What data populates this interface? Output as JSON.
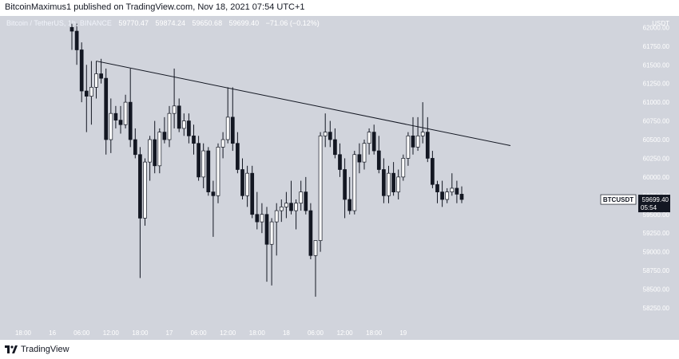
{
  "header": {
    "published_text": "BitcoinMaximus1 published on TradingView.com, Nov 18, 2021 07:54 UTC+1"
  },
  "legend": {
    "symbol_text": "Bitcoin / TetherUS, 1h, BINANCE",
    "open": "59770.47",
    "high": "59874.24",
    "low": "59650.68",
    "close": "59699.40",
    "change": "−71.06 (−0.12%)"
  },
  "price_axis": {
    "unit": "USDT",
    "ticks": [
      "62000.00",
      "61750.00",
      "61500.00",
      "61250.00",
      "61000.00",
      "60750.00",
      "60500.00",
      "60250.00",
      "60000.00",
      "59750.00",
      "59500.00",
      "59250.00",
      "59000.00",
      "58750.00",
      "58500.00",
      "58250.00"
    ]
  },
  "time_axis": {
    "ticks": [
      "18:00",
      "16",
      "06:00",
      "12:00",
      "18:00",
      "17",
      "06:00",
      "12:00",
      "18:00",
      "18",
      "06:00",
      "12:00",
      "18:00",
      "19"
    ]
  },
  "price_tag": {
    "symbol": "BTCUSDT",
    "price": "59699.40",
    "countdown": "05:54"
  },
  "footer": {
    "brand": "TradingView"
  },
  "colors": {
    "background": "#d1d4dc",
    "up_candle": "#ffffff",
    "down_candle": "#131722",
    "trendline": "#131722"
  },
  "chart_data": {
    "type": "candlestick",
    "title": "Bitcoin / TetherUS, 1h, BINANCE",
    "ylabel": "USDT",
    "ylim": [
      58100,
      62100
    ],
    "grid": false,
    "candles": [
      {
        "t": "15 20:00",
        "o": 62000,
        "h": 62050,
        "l": 61700,
        "c": 61950
      },
      {
        "t": "15 21:00",
        "o": 61950,
        "h": 62050,
        "l": 61500,
        "c": 61700
      },
      {
        "t": "15 22:00",
        "o": 61700,
        "h": 61800,
        "l": 61000,
        "c": 61150
      },
      {
        "t": "15 23:00",
        "o": 61150,
        "h": 61500,
        "l": 60600,
        "c": 61080
      },
      {
        "t": "16 00:00",
        "o": 61080,
        "h": 61550,
        "l": 60700,
        "c": 61200
      },
      {
        "t": "16 01:00",
        "o": 61200,
        "h": 61550,
        "l": 61050,
        "c": 61380
      },
      {
        "t": "16 02:00",
        "o": 61380,
        "h": 61580,
        "l": 61250,
        "c": 61320
      },
      {
        "t": "16 03:00",
        "o": 61320,
        "h": 61450,
        "l": 60300,
        "c": 60500
      },
      {
        "t": "16 04:00",
        "o": 60500,
        "h": 61050,
        "l": 60320,
        "c": 60850
      },
      {
        "t": "16 05:00",
        "o": 60850,
        "h": 60950,
        "l": 60650,
        "c": 60760
      },
      {
        "t": "16 06:00",
        "o": 60760,
        "h": 60950,
        "l": 60580,
        "c": 60700
      },
      {
        "t": "16 07:00",
        "o": 60700,
        "h": 61100,
        "l": 60650,
        "c": 61000
      },
      {
        "t": "16 08:00",
        "o": 61000,
        "h": 61450,
        "l": 60400,
        "c": 60500
      },
      {
        "t": "16 09:00",
        "o": 60500,
        "h": 60650,
        "l": 60250,
        "c": 60300
      },
      {
        "t": "16 10:00",
        "o": 60300,
        "h": 60400,
        "l": 58650,
        "c": 59450
      },
      {
        "t": "16 11:00",
        "o": 59450,
        "h": 60250,
        "l": 59350,
        "c": 60200
      },
      {
        "t": "16 12:00",
        "o": 60200,
        "h": 60550,
        "l": 59950,
        "c": 60500
      },
      {
        "t": "16 13:00",
        "o": 60500,
        "h": 60750,
        "l": 60050,
        "c": 60150
      },
      {
        "t": "16 14:00",
        "o": 60150,
        "h": 60650,
        "l": 60050,
        "c": 60600
      },
      {
        "t": "16 15:00",
        "o": 60600,
        "h": 60800,
        "l": 60450,
        "c": 60500
      },
      {
        "t": "16 16:00",
        "o": 60500,
        "h": 60950,
        "l": 60400,
        "c": 60850
      },
      {
        "t": "16 17:00",
        "o": 60850,
        "h": 61450,
        "l": 60650,
        "c": 60950
      },
      {
        "t": "16 18:00",
        "o": 60950,
        "h": 61050,
        "l": 60600,
        "c": 60650
      },
      {
        "t": "16 19:00",
        "o": 60650,
        "h": 60850,
        "l": 60550,
        "c": 60750
      },
      {
        "t": "16 20:00",
        "o": 60750,
        "h": 60850,
        "l": 60450,
        "c": 60550
      },
      {
        "t": "16 21:00",
        "o": 60550,
        "h": 60700,
        "l": 60300,
        "c": 60450
      },
      {
        "t": "16 22:00",
        "o": 60450,
        "h": 60550,
        "l": 59950,
        "c": 60000
      },
      {
        "t": "16 23:00",
        "o": 60000,
        "h": 60450,
        "l": 59850,
        "c": 60350
      },
      {
        "t": "17 00:00",
        "o": 60350,
        "h": 60400,
        "l": 59750,
        "c": 59800
      },
      {
        "t": "17 01:00",
        "o": 59800,
        "h": 59950,
        "l": 59200,
        "c": 59750
      },
      {
        "t": "17 02:00",
        "o": 59750,
        "h": 60450,
        "l": 59650,
        "c": 60400
      },
      {
        "t": "17 03:00",
        "o": 60400,
        "h": 60600,
        "l": 60250,
        "c": 60500
      },
      {
        "t": "17 04:00",
        "o": 60500,
        "h": 61200,
        "l": 60450,
        "c": 60800
      },
      {
        "t": "17 05:00",
        "o": 60800,
        "h": 61200,
        "l": 60350,
        "c": 60450
      },
      {
        "t": "17 06:00",
        "o": 60450,
        "h": 60600,
        "l": 60050,
        "c": 60100
      },
      {
        "t": "17 07:00",
        "o": 60100,
        "h": 60250,
        "l": 59700,
        "c": 59750
      },
      {
        "t": "17 08:00",
        "o": 59750,
        "h": 60150,
        "l": 59600,
        "c": 60050
      },
      {
        "t": "17 09:00",
        "o": 60050,
        "h": 60150,
        "l": 59450,
        "c": 59500
      },
      {
        "t": "17 10:00",
        "o": 59500,
        "h": 59800,
        "l": 59300,
        "c": 59400
      },
      {
        "t": "17 11:00",
        "o": 59400,
        "h": 59650,
        "l": 59250,
        "c": 59500
      },
      {
        "t": "17 12:00",
        "o": 59500,
        "h": 59600,
        "l": 58600,
        "c": 59100
      },
      {
        "t": "17 13:00",
        "o": 59100,
        "h": 59450,
        "l": 58550,
        "c": 59400
      },
      {
        "t": "17 14:00",
        "o": 59400,
        "h": 59650,
        "l": 58950,
        "c": 59550
      },
      {
        "t": "17 15:00",
        "o": 59550,
        "h": 59700,
        "l": 59400,
        "c": 59600
      },
      {
        "t": "17 16:00",
        "o": 59600,
        "h": 59800,
        "l": 59450,
        "c": 59650
      },
      {
        "t": "17 17:00",
        "o": 59650,
        "h": 59950,
        "l": 59500,
        "c": 59550
      },
      {
        "t": "17 18:00",
        "o": 59550,
        "h": 59700,
        "l": 59300,
        "c": 59650
      },
      {
        "t": "17 19:00",
        "o": 59650,
        "h": 59950,
        "l": 59550,
        "c": 59800
      },
      {
        "t": "17 20:00",
        "o": 59800,
        "h": 60000,
        "l": 59500,
        "c": 59550
      },
      {
        "t": "17 21:00",
        "o": 59550,
        "h": 59650,
        "l": 58900,
        "c": 58950
      },
      {
        "t": "17 22:00",
        "o": 58950,
        "h": 59150,
        "l": 58400,
        "c": 59150
      },
      {
        "t": "17 23:00",
        "o": 59150,
        "h": 60600,
        "l": 59000,
        "c": 60550
      },
      {
        "t": "18 00:00",
        "o": 60550,
        "h": 60850,
        "l": 60400,
        "c": 60600
      },
      {
        "t": "18 01:00",
        "o": 60600,
        "h": 60750,
        "l": 60400,
        "c": 60500
      },
      {
        "t": "18 02:00",
        "o": 60500,
        "h": 60650,
        "l": 60250,
        "c": 60300
      },
      {
        "t": "18 03:00",
        "o": 60300,
        "h": 60450,
        "l": 60000,
        "c": 60100
      },
      {
        "t": "18 04:00",
        "o": 60100,
        "h": 60250,
        "l": 59450,
        "c": 59700
      },
      {
        "t": "18 05:00",
        "o": 59700,
        "h": 60000,
        "l": 59500,
        "c": 59550
      },
      {
        "t": "18 06:00",
        "o": 59550,
        "h": 60350,
        "l": 59500,
        "c": 60300
      },
      {
        "t": "18 07:00",
        "o": 60300,
        "h": 60450,
        "l": 60050,
        "c": 60200
      },
      {
        "t": "18 08:00",
        "o": 60200,
        "h": 60500,
        "l": 60100,
        "c": 60450
      },
      {
        "t": "18 09:00",
        "o": 60450,
        "h": 60650,
        "l": 60300,
        "c": 60600
      },
      {
        "t": "18 10:00",
        "o": 60600,
        "h": 60700,
        "l": 60300,
        "c": 60350
      },
      {
        "t": "18 11:00",
        "o": 60350,
        "h": 60550,
        "l": 60050,
        "c": 60100
      },
      {
        "t": "18 12:00",
        "o": 60100,
        "h": 60250,
        "l": 59650,
        "c": 59750
      },
      {
        "t": "18 13:00",
        "o": 59750,
        "h": 60150,
        "l": 59650,
        "c": 60050
      },
      {
        "t": "18 14:00",
        "o": 60050,
        "h": 60200,
        "l": 59750,
        "c": 59800
      },
      {
        "t": "18 15:00",
        "o": 59800,
        "h": 60100,
        "l": 59700,
        "c": 60000
      },
      {
        "t": "18 16:00",
        "o": 60000,
        "h": 60300,
        "l": 59950,
        "c": 60250
      },
      {
        "t": "18 17:00",
        "o": 60250,
        "h": 60600,
        "l": 60150,
        "c": 60550
      },
      {
        "t": "18 18:00",
        "o": 60550,
        "h": 60800,
        "l": 60300,
        "c": 60400
      },
      {
        "t": "18 19:00",
        "o": 60400,
        "h": 60800,
        "l": 60350,
        "c": 60550
      },
      {
        "t": "18 20:00",
        "o": 60550,
        "h": 61000,
        "l": 60450,
        "c": 60600
      },
      {
        "t": "18 21:00",
        "o": 60600,
        "h": 60800,
        "l": 60200,
        "c": 60250
      },
      {
        "t": "18 22:00",
        "o": 60250,
        "h": 60350,
        "l": 59850,
        "c": 59900
      },
      {
        "t": "18 23:00",
        "o": 59900,
        "h": 59950,
        "l": 59650,
        "c": 59800
      },
      {
        "t": "19 00:00",
        "o": 59800,
        "h": 59950,
        "l": 59600,
        "c": 59700
      },
      {
        "t": "19 01:00",
        "o": 59700,
        "h": 59850,
        "l": 59650,
        "c": 59800
      },
      {
        "t": "19 02:00",
        "o": 59800,
        "h": 60050,
        "l": 59750,
        "c": 59850
      },
      {
        "t": "19 03:00",
        "o": 59850,
        "h": 59950,
        "l": 59650,
        "c": 59770
      },
      {
        "t": "19 04:00",
        "o": 59770.47,
        "h": 59874.24,
        "l": 59650.68,
        "c": 59699.4
      }
    ],
    "trendline": [
      {
        "x_index": 5,
        "price": 61550
      },
      {
        "x_index": 70,
        "price": 60550
      },
      {
        "x_index": 90,
        "price": 60420
      }
    ]
  }
}
